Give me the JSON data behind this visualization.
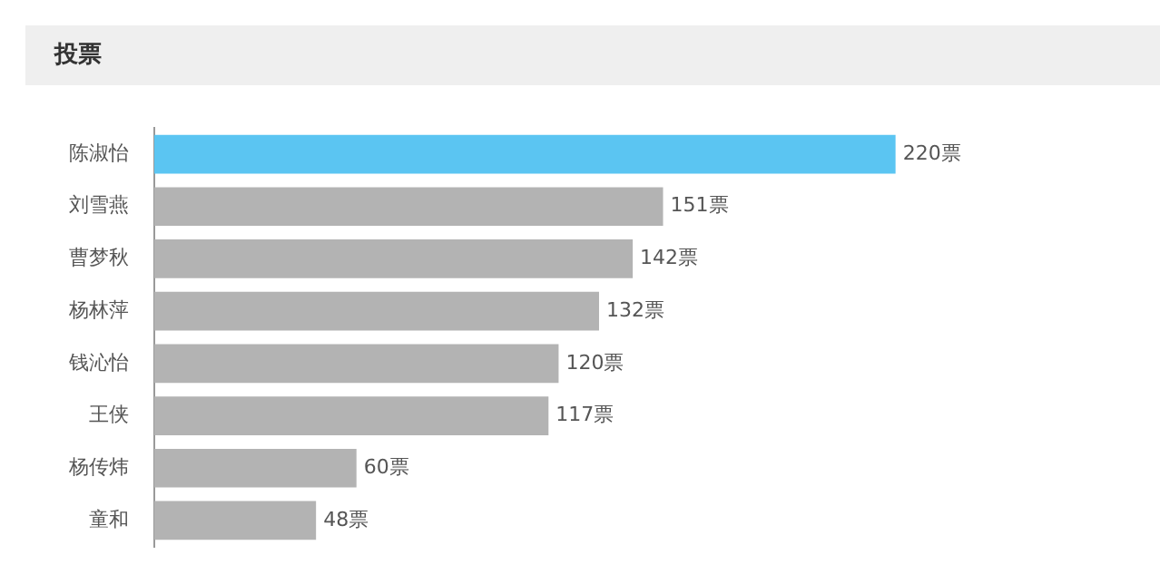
{
  "chart_data": {
    "type": "bar",
    "orientation": "horizontal",
    "title": "投票",
    "categories": [
      "陈淑怡",
      "刘雪燕",
      "曹梦秋",
      "杨林萍",
      "钱沁怡",
      "王侠",
      "杨传炜",
      "童和"
    ],
    "values": [
      220,
      151,
      142,
      132,
      120,
      117,
      60,
      48
    ],
    "colors": [
      "#5bc5f2",
      "#b3b3b3",
      "#b3b3b3",
      "#b3b3b3",
      "#b3b3b3",
      "#b3b3b3",
      "#b3b3b3",
      "#b3b3b3"
    ],
    "value_labels": [
      "220票",
      "151票",
      "142票",
      "132票",
      "120票",
      "117票",
      "60票",
      "48票"
    ],
    "tick_labels": "y",
    "grid": false,
    "legend": false
  }
}
